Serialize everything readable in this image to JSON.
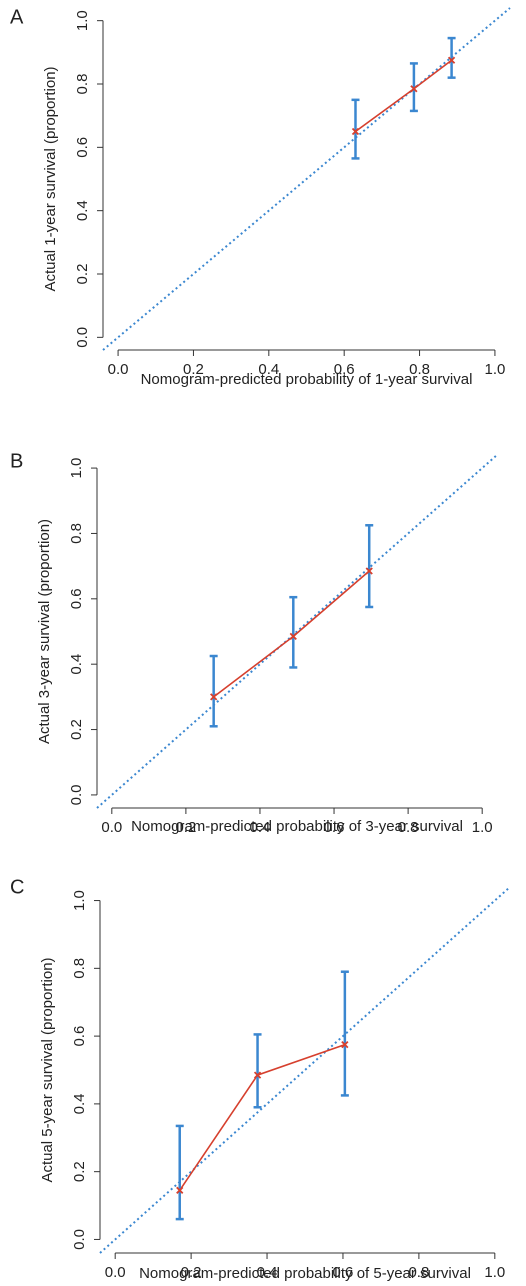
{
  "chart_data": [
    {
      "type": "line",
      "panel": "A",
      "x_label": "Nomogram-predicted probability of 1-year survival",
      "y_label": "Actual 1-year survival (proportion)",
      "x": [
        0.63,
        0.785,
        0.885
      ],
      "values": [
        0.65,
        0.785,
        0.875
      ],
      "lower": [
        0.565,
        0.715,
        0.82
      ],
      "upper": [
        0.75,
        0.865,
        0.945
      ],
      "color": "#d6402e",
      "errorbar_color": "#3b87d0",
      "reference_color": "#3b87d0",
      "xlim": [
        -0.04,
        1.04
      ],
      "ylim": [
        -0.04,
        1.04
      ],
      "xticks": [
        {
          "value": 0,
          "label": "0.0"
        },
        0.2,
        0.4,
        0.6,
        0.8,
        {
          "value": 1,
          "label": "1.0"
        }
      ],
      "yticks": [
        {
          "value": 0,
          "label": "0.0"
        },
        0.2,
        0.4,
        0.6,
        0.8,
        {
          "value": 1,
          "label": "1.0"
        }
      ]
    },
    {
      "type": "line",
      "panel": "B",
      "x_label": "Nomogram-predicted probability of 3-year survival",
      "y_label": "Actual 3-year survival (proportion)",
      "x": [
        0.275,
        0.49,
        0.695
      ],
      "values": [
        0.3,
        0.485,
        0.685
      ],
      "lower": [
        0.21,
        0.39,
        0.575
      ],
      "upper": [
        0.425,
        0.605,
        0.825
      ],
      "color": "#d6402e",
      "errorbar_color": "#3b87d0",
      "reference_color": "#3b87d0",
      "xlim": [
        -0.04,
        1.04
      ],
      "ylim": [
        -0.04,
        1.04
      ],
      "xticks": [
        {
          "value": 0,
          "label": "0.0"
        },
        0.2,
        0.4,
        0.6,
        0.8,
        {
          "value": 1,
          "label": "1.0"
        }
      ],
      "yticks": [
        {
          "value": 0,
          "label": "0.0"
        },
        0.2,
        0.4,
        0.6,
        0.8,
        {
          "value": 1,
          "label": "1.0"
        }
      ]
    },
    {
      "type": "line",
      "panel": "C",
      "x_label": "Nomogram-predicted probability of 5-year survival",
      "y_label": "Actual 5-year survival (proportion)",
      "x": [
        0.17,
        0.375,
        0.605
      ],
      "values": [
        0.145,
        0.485,
        0.575
      ],
      "lower": [
        0.06,
        0.39,
        0.425
      ],
      "upper": [
        0.335,
        0.605,
        0.79
      ],
      "color": "#d6402e",
      "errorbar_color": "#3b87d0",
      "reference_color": "#3b87d0",
      "xlim": [
        -0.04,
        1.04
      ],
      "ylim": [
        -0.04,
        1.04
      ],
      "xticks": [
        {
          "value": 0,
          "label": "0.0"
        },
        0.2,
        0.4,
        0.6,
        0.8,
        {
          "value": 1,
          "label": "1.0"
        }
      ],
      "yticks": [
        {
          "value": 0,
          "label": "0.0"
        },
        0.2,
        0.4,
        0.6,
        0.8,
        {
          "value": 1,
          "label": "1.0"
        }
      ]
    }
  ]
}
